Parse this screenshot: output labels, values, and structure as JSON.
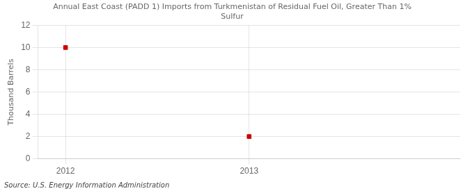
{
  "chart_data": {
    "type": "scatter",
    "title": "Annual East Coast (PADD 1) Imports from Turkmenistan of Residual Fuel Oil, Greater Than 1%\nSulfur",
    "ylabel": "Thousand Barrels",
    "annotations": [
      "Source: U.S. Energy Information Administration"
    ],
    "x": [
      2012,
      2013
    ],
    "values": [
      10,
      2
    ],
    "color": "#cc0000",
    "marker": "square",
    "xlim": [
      2011.85,
      2014.15
    ],
    "xticks": [
      2012,
      2013
    ],
    "ylim": [
      0,
      12
    ],
    "yticks": [
      0,
      2,
      4,
      6,
      8,
      10,
      12
    ],
    "grid": true
  }
}
